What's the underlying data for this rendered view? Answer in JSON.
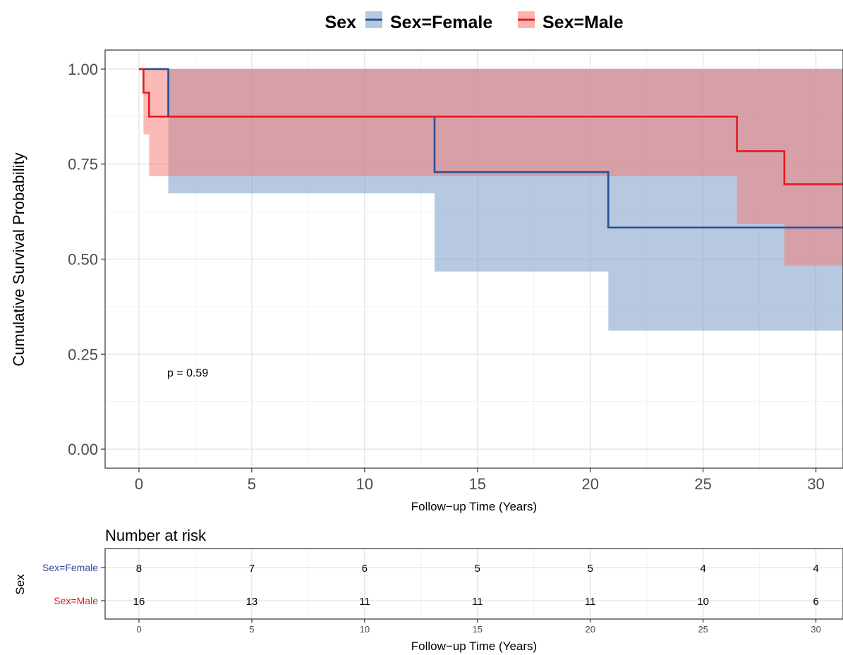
{
  "chart_data": {
    "type": "line",
    "subtype": "kaplan-meier-step",
    "legend": {
      "title": "Sex",
      "position": "top",
      "entries": [
        "Sex=Female",
        "Sex=Male"
      ]
    },
    "xlabel": "Follow−up Time (Years)",
    "ylabel": "Cumulative Survival Probability",
    "xlim": [
      -1.5,
      31.2
    ],
    "ylim": [
      -0.05,
      1.05
    ],
    "xticks": [
      0,
      5,
      10,
      15,
      20,
      25,
      30
    ],
    "xtick_labels": [
      "0",
      "5",
      "10",
      "15",
      "20",
      "25",
      "30"
    ],
    "yticks": [
      0,
      0.25,
      0.5,
      0.75,
      1.0
    ],
    "ytick_labels": [
      "0.00",
      "0.25",
      "0.50",
      "0.75",
      "1.00"
    ],
    "grid": true,
    "annotation": "p = 0.59",
    "annotation_pos": [
      1.5,
      0.2
    ],
    "series": [
      {
        "name": "Sex=Female",
        "color": "#2B4E94",
        "band_color": "#7C9CC6",
        "steps": [
          [
            0,
            1.0
          ],
          [
            1.3,
            0.875
          ],
          [
            13.1,
            0.729
          ],
          [
            20.8,
            0.583
          ]
        ],
        "end_x": 31.2,
        "ci": [
          [
            0,
            1.0,
            1.0
          ],
          [
            1.3,
            0.673,
            1.0
          ],
          [
            13.1,
            0.467,
            1.0
          ],
          [
            20.8,
            0.312,
            1.0
          ]
        ]
      },
      {
        "name": "Sex=Male",
        "color": "#E41A1C",
        "band_color": "#F8766D",
        "steps": [
          [
            0,
            1.0
          ],
          [
            0.2,
            0.938
          ],
          [
            0.45,
            0.875
          ],
          [
            26.5,
            0.784
          ],
          [
            28.6,
            0.697
          ]
        ],
        "end_x": 31.2,
        "ci": [
          [
            0,
            1.0,
            1.0
          ],
          [
            0.2,
            0.828,
            1.0
          ],
          [
            0.45,
            0.718,
            1.0
          ],
          [
            26.5,
            0.592,
            1.0
          ],
          [
            28.6,
            0.483,
            1.0
          ]
        ]
      }
    ],
    "risk_table": {
      "title": "Number at risk",
      "ylabel": "Sex",
      "xlabel": "Follow−up Time (Years)",
      "times": [
        0,
        5,
        10,
        15,
        20,
        25,
        30
      ],
      "xtick_labels": [
        "0",
        "5",
        "10",
        "15",
        "20",
        "25",
        "30"
      ],
      "rows": [
        {
          "label": "Sex=Female",
          "color": "#2B4E94",
          "values": [
            "8",
            "7",
            "6",
            "5",
            "5",
            "4",
            "4"
          ]
        },
        {
          "label": "Sex=Male",
          "color": "#E41A1C",
          "values": [
            "16",
            "13",
            "11",
            "11",
            "11",
            "10",
            "6"
          ]
        }
      ]
    }
  }
}
